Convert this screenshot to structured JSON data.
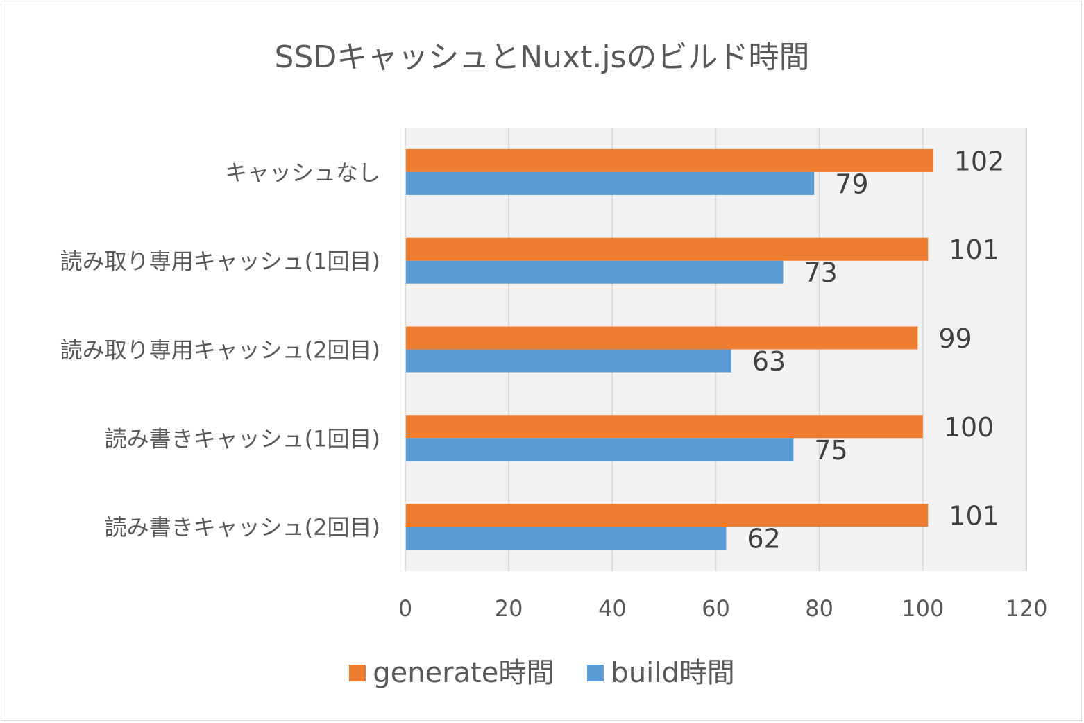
{
  "chart_data": {
    "type": "bar",
    "orientation": "horizontal",
    "title": "SSDキャッシュとNuxt.jsのビルド時間",
    "xlabel": "",
    "ylabel": "",
    "xlim": [
      0,
      120
    ],
    "x_ticks": [
      "0",
      "20",
      "40",
      "60",
      "80",
      "100",
      "120"
    ],
    "categories": [
      "キャッシュなし",
      "読み取り専用キャッシュ(1回目)",
      "読み取り専用キャッシュ(2回目)",
      "読み書きキャッシュ(1回目)",
      "読み書きキャッシュ(2回目)"
    ],
    "series": [
      {
        "name": "generate時間",
        "color": "#ED7D31",
        "values": [
          102,
          101,
          99,
          100,
          101
        ]
      },
      {
        "name": "build時間",
        "color": "#5B9BD5",
        "values": [
          79,
          73,
          63,
          75,
          62
        ]
      }
    ],
    "grid": true,
    "legend_position": "bottom",
    "plot_background": "#F2F2F2",
    "gridline_color": "#D9D9D9",
    "text_color": "#595959",
    "label_color": "#404040"
  }
}
